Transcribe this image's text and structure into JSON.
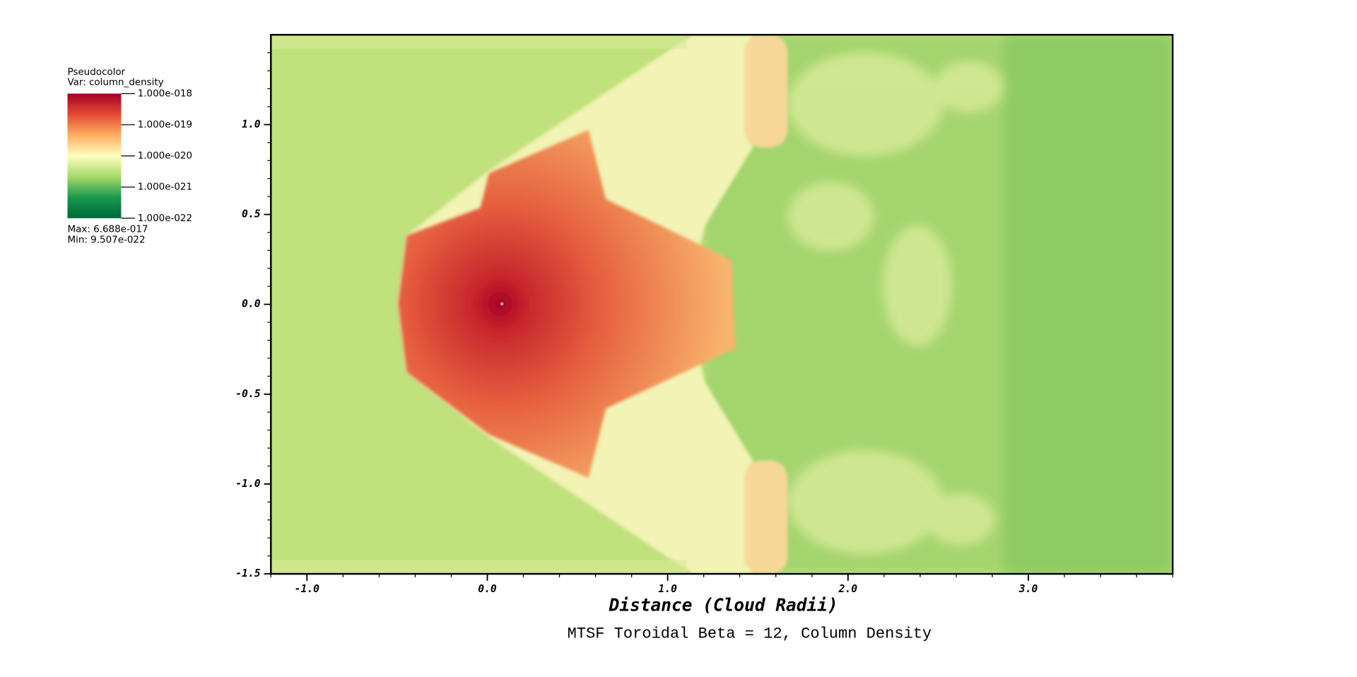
{
  "chart_data": {
    "type": "pseudocolor",
    "title": "MTSF Toroidal Beta = 12, Column Density",
    "xlabel": "Distance (Cloud Radii)",
    "xlim": [
      -1.2,
      3.8
    ],
    "xticks": [
      {
        "value": -1.0,
        "label": "-1.0"
      },
      {
        "value": 0,
        "label": "0.0"
      },
      {
        "value": 1,
        "label": "1.0"
      },
      {
        "value": 2,
        "label": "2.0"
      },
      {
        "value": 3,
        "label": "3.0"
      }
    ],
    "xminorticks": [
      -1.2,
      -0.8,
      -0.6,
      -0.4,
      -0.2,
      0.2,
      0.4,
      0.6,
      0.8,
      1.2,
      1.4,
      1.6,
      1.8,
      2.2,
      2.4,
      2.6,
      2.8,
      3.2,
      3.4,
      3.6,
      3.8
    ],
    "ylim": [
      -1.5,
      1.5
    ],
    "yticks": [
      {
        "value": -1.5,
        "label": "-1.5"
      },
      {
        "value": -1.0,
        "label": "-1.0"
      },
      {
        "value": -0.5,
        "label": "-0.5"
      },
      {
        "value": 0,
        "label": "0.0"
      },
      {
        "value": 0.5,
        "label": "0.5"
      },
      {
        "value": 1,
        "label": "1.0"
      }
    ],
    "yminorticks": [
      -1.4,
      -1.3,
      -1.2,
      -1.1,
      -0.9,
      -0.8,
      -0.7,
      -0.6,
      -0.4,
      -0.3,
      -0.2,
      -0.1,
      0.1,
      0.2,
      0.3,
      0.4,
      0.6,
      0.7,
      0.8,
      0.9,
      1.1,
      1.2,
      1.3,
      1.4
    ],
    "legend": {
      "title": "Pseudocolor",
      "variable": "Var: column_density",
      "scale": "log",
      "colors": [
        "#a50026",
        "#e34a33",
        "#fdae61",
        "#ffffbf",
        "#a6d96a",
        "#1a9850",
        "#006837"
      ],
      "lim": [
        1e-22,
        1e-18
      ],
      "ticks": [
        {
          "value": 1e-18,
          "label": "1.000e-018"
        },
        {
          "value": 1e-19,
          "label": "1.000e-019"
        },
        {
          "value": 1e-20,
          "label": "1.000e-020"
        },
        {
          "value": 1e-21,
          "label": "1.000e-021"
        },
        {
          "value": 1e-22,
          "label": "1.000e-022"
        }
      ],
      "max": "Max:  6.688e-017",
      "min": "Min:  9.507e-022"
    }
  }
}
